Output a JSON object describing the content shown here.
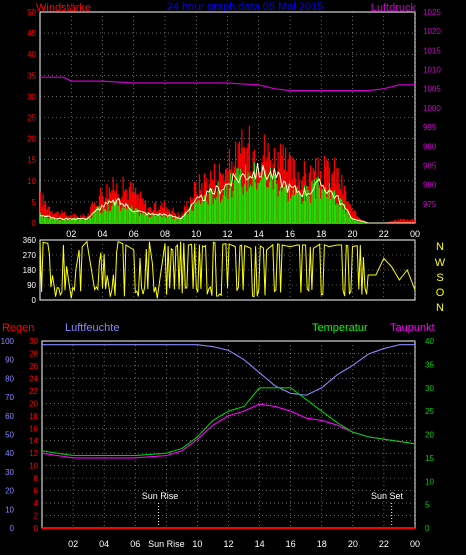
{
  "header": {
    "left_label": "Windstärke",
    "title": "24 hour graph data  05 Mai 2015",
    "right_label": "Luftdruck"
  },
  "colors": {
    "background": "#000000",
    "frame": "#ffffff",
    "wind": "#ff0000",
    "gust_bars": "#00ff00",
    "wind_avg_line": "#ffffcc",
    "pressure": "#cc00cc",
    "direction": "#ffff00",
    "rain": "#ff0000",
    "humidity": "#8888ff",
    "temperature": "#00cc00",
    "dewpoint": "#ff00ff",
    "title": "#0000ff",
    "grid": "#aaaaaa"
  },
  "x_ticks": [
    "02",
    "04",
    "06",
    "08",
    "10",
    "12",
    "14",
    "16",
    "18",
    "20",
    "22",
    "00"
  ],
  "x_ticks_bottom": [
    "02",
    "04",
    "06",
    "Sun Rise",
    "10",
    "12",
    "14",
    "16",
    "18",
    "20",
    "22",
    "00"
  ],
  "direction_labels": [
    "N",
    "W",
    "S",
    "O",
    "N"
  ],
  "bottom_header": {
    "rain_label": "Regen",
    "humidity_label": "Luftfeuchte",
    "temperature_label": "Temperatur",
    "dewpoint_label": "Taupunkt"
  },
  "sun": {
    "rise_label": "Sun Rise",
    "set_label": "Sun Set"
  },
  "chart_data": [
    {
      "type": "line",
      "title": "24 hour graph data  05 Mai 2015",
      "x_range_hours": [
        0,
        24
      ],
      "x_tick_labels": [
        "02",
        "04",
        "06",
        "08",
        "10",
        "12",
        "14",
        "16",
        "18",
        "20",
        "22",
        "00"
      ],
      "y_left_label": "Windstärke",
      "y_left_range": [
        0,
        50
      ],
      "y_left_ticks": [
        0,
        5,
        10,
        15,
        20,
        25,
        30,
        35,
        40,
        45,
        50
      ],
      "y_right_label": "Luftdruck",
      "y_right_range": [
        970,
        1025
      ],
      "y_right_ticks": [
        975,
        980,
        985,
        990,
        995,
        1000,
        1005,
        1010,
        1015,
        1020,
        1025
      ],
      "grid": true,
      "series": [
        {
          "name": "Windstärke",
          "axis": "left",
          "x": [
            0,
            1,
            2,
            3,
            4,
            5,
            6,
            7,
            8,
            9,
            10,
            11,
            12,
            13,
            14,
            15,
            16,
            17,
            18,
            19,
            20,
            21,
            22,
            23,
            24
          ],
          "values": [
            7,
            3,
            2,
            2,
            9,
            10,
            9,
            4,
            5,
            2,
            10,
            13,
            15,
            20,
            21,
            18,
            15,
            13,
            14,
            14,
            3,
            0,
            0,
            1,
            1
          ]
        },
        {
          "name": "Windstärke Mittel",
          "axis": "left",
          "x": [
            0,
            1,
            2,
            3,
            4,
            5,
            6,
            7,
            8,
            9,
            10,
            11,
            12,
            13,
            14,
            15,
            16,
            17,
            18,
            19,
            20,
            21,
            22,
            23,
            24
          ],
          "values": [
            2,
            1,
            1,
            1,
            4,
            5,
            3,
            2,
            2,
            1,
            5,
            7,
            9,
            11,
            12,
            11,
            8,
            7,
            9,
            6,
            1,
            0,
            0,
            0,
            0
          ]
        },
        {
          "name": "Luftdruck",
          "axis": "right",
          "x": [
            0,
            1.5,
            2,
            4,
            6,
            8,
            10,
            12,
            14,
            15,
            16,
            18,
            20,
            21,
            22,
            23,
            24
          ],
          "values": [
            1008,
            1008,
            1007,
            1007,
            1006.5,
            1006.5,
            1006.5,
            1006.5,
            1006,
            1005,
            1004.5,
            1004.5,
            1004.5,
            1004.5,
            1005,
            1006,
            1006
          ]
        }
      ]
    },
    {
      "type": "scatter",
      "x_range_hours": [
        0,
        24
      ],
      "y_range": [
        0,
        360
      ],
      "y_ticks": [
        0,
        90,
        180,
        270,
        360
      ],
      "y_right_labels": [
        "N",
        "W",
        "S",
        "O",
        "N"
      ],
      "series": [
        {
          "name": "Windrichtung",
          "x": [
            0,
            0.5,
            1,
            1.5,
            2,
            2.5,
            3,
            3.5,
            4,
            4.5,
            5,
            5.5,
            6,
            6.5,
            7,
            7.5,
            8,
            8.5,
            9,
            9.5,
            10,
            10.5,
            11,
            11.5,
            12,
            12.5,
            13,
            13.5,
            14,
            14.5,
            15,
            15.5,
            16,
            16.5,
            17,
            17.5,
            18,
            18.5,
            19,
            19.5,
            20,
            20.5,
            21,
            21.5,
            22,
            22.5,
            23,
            23.5,
            24
          ],
          "values": [
            350,
            340,
            20,
            330,
            10,
            300,
            350,
            60,
            340,
            20,
            350,
            330,
            300,
            240,
            350,
            10,
            340,
            300,
            350,
            330,
            340,
            320,
            350,
            330,
            340,
            320,
            330,
            310,
            330,
            300,
            340,
            330,
            320,
            330,
            330,
            310,
            340,
            320,
            330,
            330,
            320,
            330,
            150,
            150,
            250,
            200,
            120,
            180,
            60
          ]
        }
      ]
    },
    {
      "type": "line",
      "x_range_hours": [
        0,
        24
      ],
      "x_tick_labels": [
        "02",
        "04",
        "06",
        "Sun Rise",
        "10",
        "12",
        "14",
        "16",
        "18",
        "20",
        "22",
        "00"
      ],
      "y_rain_label": "Regen",
      "y_rain_range": [
        0,
        30
      ],
      "y_rain_ticks": [
        0,
        2,
        4,
        6,
        8,
        10,
        12,
        14,
        16,
        18,
        20,
        22,
        24,
        26,
        28,
        30
      ],
      "y_humidity_label": "Luftfeuchte",
      "y_humidity_range": [
        0,
        100
      ],
      "y_humidity_ticks": [
        0,
        10,
        20,
        30,
        40,
        50,
        60,
        70,
        80,
        90,
        100
      ],
      "y_temperature_label": "Temperatur",
      "y_temperature_range": [
        0,
        40
      ],
      "y_temperature_ticks": [
        0,
        5,
        10,
        15,
        20,
        25,
        30,
        35,
        40
      ],
      "grid": true,
      "annotations": [
        {
          "text": "Sun Rise",
          "x_hour": 7.5
        },
        {
          "text": "Sun Set",
          "x_hour": 22.5
        }
      ],
      "series": [
        {
          "name": "Regen",
          "axis": "rain",
          "x": [
            0,
            24
          ],
          "values": [
            0,
            0
          ]
        },
        {
          "name": "Luftfeuchte",
          "axis": "humidity",
          "x": [
            0,
            2,
            4,
            6,
            8,
            9,
            10,
            11,
            12,
            13,
            14,
            15,
            16,
            17,
            18,
            19,
            20,
            21,
            22,
            23,
            24
          ],
          "values": [
            98,
            98,
            98,
            98,
            98,
            98,
            98,
            97,
            95,
            90,
            83,
            76,
            72,
            71,
            75,
            82,
            87,
            93,
            96,
            98,
            98
          ]
        },
        {
          "name": "Temperatur",
          "axis": "temperature",
          "x": [
            0,
            2,
            4,
            6,
            8,
            9,
            10,
            11,
            12,
            13,
            14,
            15,
            16,
            17,
            18,
            19,
            20,
            21,
            22,
            23,
            24
          ],
          "values": [
            16.5,
            15.5,
            15.5,
            15.5,
            16,
            17,
            19.5,
            23,
            25,
            26,
            30,
            30,
            30,
            27.5,
            25,
            22.5,
            20.5,
            19.5,
            19,
            18.5,
            18
          ]
        },
        {
          "name": "Taupunkt",
          "axis": "temperature",
          "x": [
            0,
            2,
            4,
            6,
            8,
            9,
            10,
            11,
            12,
            13,
            14,
            15,
            16,
            17,
            18,
            19,
            20,
            21,
            22,
            23,
            24
          ],
          "values": [
            16,
            15,
            15,
            15,
            15.5,
            16.5,
            19,
            22,
            24,
            25,
            26.5,
            26,
            25,
            23.5,
            23,
            22,
            20.5,
            19.5,
            19,
            18.5,
            18
          ]
        }
      ]
    }
  ]
}
